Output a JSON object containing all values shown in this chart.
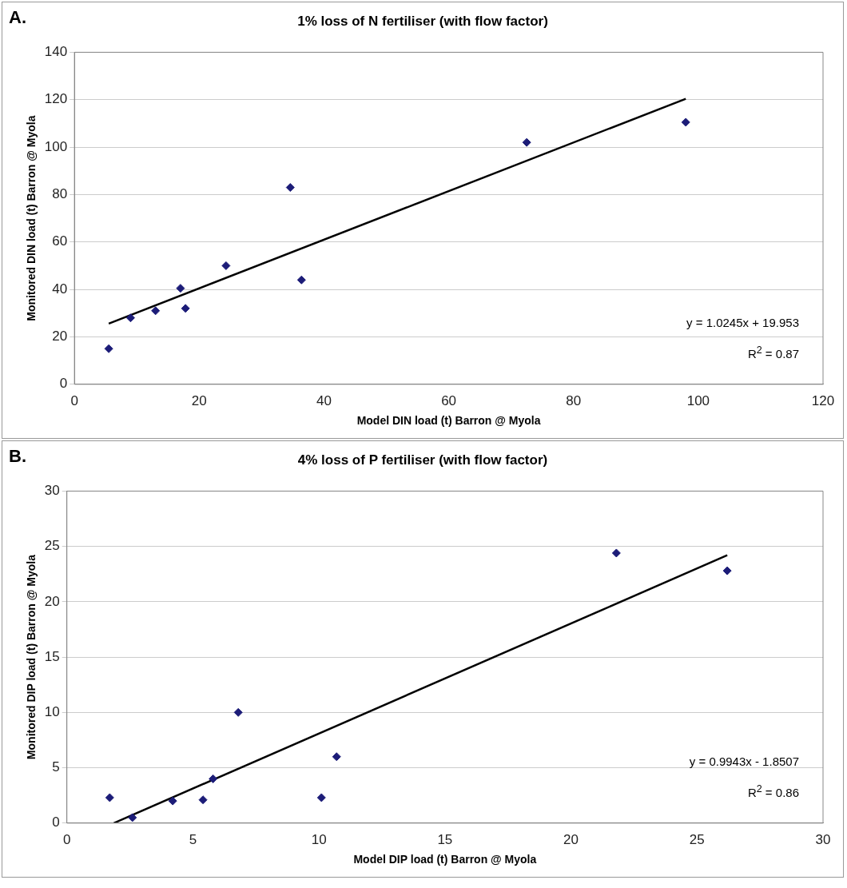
{
  "chart_data": [
    {
      "type": "scatter",
      "title": "1% loss of N fertiliser (with flow factor)",
      "xlabel": "Model DIN load (t) Barron @ Myola",
      "ylabel": "Monitored DIN load (t) Barron @ Myola",
      "annotations": [
        "A.",
        "y = 1.0245x + 19.953",
        "R$^{2}$ = 0.87"
      ],
      "series": [
        {
          "type": "scatter",
          "color": "#1c1c78",
          "marker": "diamond",
          "x": [
            5.5,
            9,
            13,
            17,
            17.8,
            24.3,
            34.6,
            36.4,
            72.5,
            98
          ],
          "values": [
            15,
            28,
            31,
            40.5,
            32,
            50,
            83,
            44,
            102,
            110.5
          ]
        },
        {
          "type": "line",
          "color": "#000000",
          "marker": "none",
          "x": [
            5.5,
            98
          ],
          "values": [
            25.6,
            120.4
          ]
        }
      ],
      "xlim": [
        0,
        120
      ],
      "xticks": [
        0,
        20,
        40,
        60,
        80,
        100,
        120
      ],
      "ylim": [
        0,
        140
      ],
      "yticks": [
        0,
        20,
        40,
        60,
        80,
        100,
        120,
        140
      ],
      "grid": "y",
      "legend": false
    },
    {
      "type": "scatter",
      "title": "4% loss of P fertiliser (with flow factor)",
      "xlabel": "Model DIP load (t) Barron @ Myola",
      "ylabel": "Monitored DIP load (t) Barron @ Myola",
      "annotations": [
        "B.",
        "y = 0.9943x - 1.8507",
        "R$^{2}$ = 0.86"
      ],
      "series": [
        {
          "type": "scatter",
          "color": "#1c1c78",
          "marker": "diamond",
          "x": [
            1.7,
            2.6,
            4.2,
            5.4,
            5.8,
            6.8,
            10.1,
            10.7,
            21.8,
            26.2
          ],
          "values": [
            2.3,
            0.5,
            2.0,
            2.1,
            4.0,
            10,
            2.3,
            6.0,
            24.4,
            22.8
          ]
        },
        {
          "type": "line",
          "color": "#000000",
          "marker": "none",
          "x": [
            1.86,
            26.2
          ],
          "values": [
            0,
            24.2
          ]
        }
      ],
      "xlim": [
        0,
        30
      ],
      "xticks": [
        0,
        5,
        10,
        15,
        20,
        25,
        30
      ],
      "ylim": [
        0,
        30
      ],
      "yticks": [
        0,
        5,
        10,
        15,
        20,
        25,
        30
      ],
      "grid": "y",
      "legend": false
    }
  ]
}
